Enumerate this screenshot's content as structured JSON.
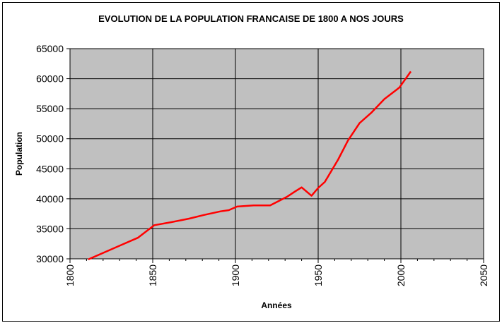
{
  "chart_data": {
    "type": "line",
    "title": "EVOLUTION DE LA POPULATION FRANCAISE DE 1800 A NOS JOURS",
    "xlabel": "Années",
    "ylabel": "Population",
    "xlim": [
      1800,
      2050
    ],
    "ylim": [
      30000,
      65000
    ],
    "x_ticks": [
      1800,
      1850,
      1900,
      1950,
      2000,
      2050
    ],
    "y_ticks": [
      30000,
      35000,
      40000,
      45000,
      50000,
      55000,
      60000,
      65000
    ],
    "x_minor_step": 10,
    "grid": "major",
    "legend": "none",
    "plot_background": "#c0c0c0",
    "line_color": "#ff0000",
    "series": [
      {
        "x": [
          1811,
          1821,
          1831,
          1841,
          1851,
          1861,
          1872,
          1881,
          1891,
          1896,
          1901,
          1911,
          1921,
          1931,
          1936,
          1940,
          1946,
          1950,
          1954,
          1962,
          1968,
          1975,
          1982,
          1990,
          1999,
          2006
        ],
        "values": [
          29900,
          31100,
          32300,
          33500,
          35600,
          36100,
          36700,
          37300,
          37900,
          38100,
          38700,
          38900,
          38900,
          40300,
          41200,
          41900,
          40500,
          41800,
          42800,
          46500,
          49700,
          52600,
          54300,
          56600,
          58500,
          61200
        ]
      }
    ]
  }
}
